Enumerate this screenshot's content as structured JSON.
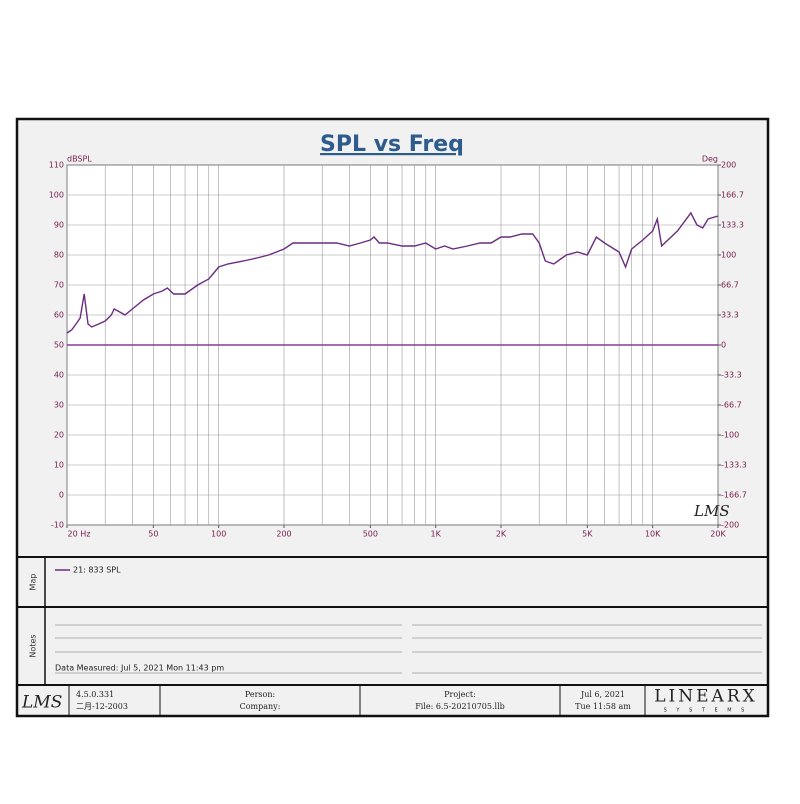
{
  "chart_data": {
    "type": "line",
    "title": "SPL vs Freq",
    "y_label": "dBSPL",
    "y2_label": "Deg",
    "xlim": [
      20,
      20000
    ],
    "log_x": true,
    "xticks": [
      {
        "value": 20,
        "label": "20 Hz"
      },
      50,
      100,
      200,
      500,
      {
        "value": 1000,
        "label": "1K"
      },
      {
        "value": 2000,
        "label": "2K"
      },
      {
        "value": 5000,
        "label": "5K"
      },
      {
        "value": 10000,
        "label": "10K"
      },
      {
        "value": 20000,
        "label": "20K"
      }
    ],
    "xgrid": [
      20,
      30,
      40,
      50,
      60,
      70,
      80,
      90,
      100,
      200,
      300,
      400,
      500,
      600,
      700,
      800,
      900,
      1000,
      2000,
      3000,
      4000,
      5000,
      6000,
      7000,
      8000,
      9000,
      10000,
      20000
    ],
    "ylim": [
      -10,
      110
    ],
    "yticks": [
      -10,
      0,
      10,
      20,
      30,
      40,
      50,
      60,
      70,
      80,
      90,
      100,
      110
    ],
    "y2lim": [
      -200,
      200
    ],
    "y2ticks": [
      -200,
      {
        "value": -166.667,
        "label": "-166.7"
      },
      {
        "value": -133.333,
        "label": "-133.3"
      },
      -100,
      {
        "value": -66.667,
        "label": "-66.7"
      },
      {
        "value": -33.333,
        "label": "-33.3"
      },
      0,
      {
        "value": 33.333,
        "label": "33.3"
      },
      {
        "value": 66.667,
        "label": "66.7"
      },
      100,
      {
        "value": 133.333,
        "label": "133.3"
      },
      {
        "value": 166.667,
        "label": "166.7"
      },
      200
    ],
    "grid": true,
    "series": [
      {
        "name": "21: 833 SPL",
        "color": "#6a2c80",
        "x": [
          20,
          21,
          22,
          23,
          24,
          25,
          26,
          28,
          30,
          32,
          33,
          35,
          37,
          40,
          45,
          50,
          55,
          58,
          62,
          70,
          80,
          90,
          95,
          100,
          110,
          130,
          150,
          170,
          200,
          220,
          250,
          300,
          350,
          400,
          450,
          500,
          520,
          550,
          600,
          700,
          800,
          900,
          1000,
          1100,
          1200,
          1400,
          1600,
          1800,
          2000,
          2200,
          2500,
          2800,
          3000,
          3200,
          3500,
          4000,
          4500,
          5000,
          5500,
          6000,
          7000,
          7500,
          8000,
          9000,
          10000,
          10500,
          11000,
          13000,
          15000,
          16000,
          17000,
          18000,
          20000
        ],
        "values": [
          54,
          55,
          57,
          59,
          67,
          57,
          56,
          57,
          58,
          60,
          62,
          61,
          60,
          62,
          65,
          67,
          68,
          69,
          67,
          67,
          70,
          72,
          74,
          76,
          77,
          78,
          79,
          80,
          82,
          84,
          84,
          84,
          84,
          83,
          84,
          85,
          86,
          84,
          84,
          83,
          83,
          84,
          82,
          83,
          82,
          83,
          84,
          84,
          86,
          86,
          87,
          87,
          84,
          78,
          77,
          80,
          81,
          80,
          86,
          84,
          81,
          76,
          82,
          85,
          88,
          92,
          83,
          88,
          94,
          90,
          89,
          92,
          93
        ]
      },
      {
        "color": "#8a3a9e",
        "axis": "y2",
        "x": [
          20,
          20000
        ],
        "values": [
          0,
          0
        ]
      }
    ]
  },
  "watermark": "LMS",
  "map_panel": {
    "label": "Map"
  },
  "notes_panel": {
    "label": "Notes",
    "data_measured": "Data Measured: Jul  5, 2021   Mon 11:43 pm"
  },
  "footer": {
    "logo": "LMS",
    "version": "4.5.0.331",
    "date": "二月-12-2003",
    "person": "Person:",
    "company": "Company:",
    "project": "Project:",
    "file": "File: 6.5-20210705.llb",
    "print_date": "Jul  6, 2021",
    "print_time": "Tue 11:58 am",
    "brand": "LINEARX",
    "brand_sub": "S Y S T E M S"
  }
}
